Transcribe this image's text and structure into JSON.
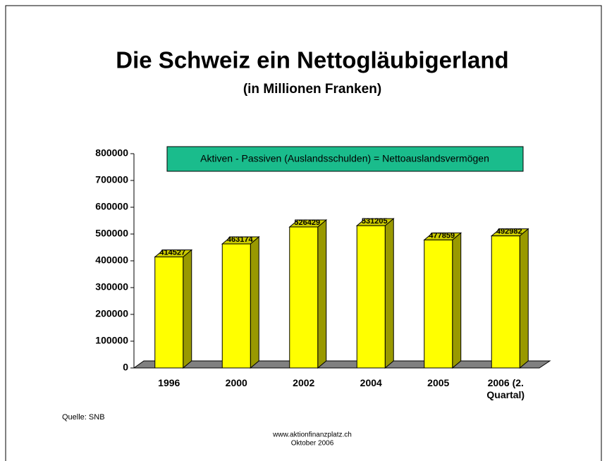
{
  "chart_data": {
    "type": "bar3d",
    "title": "Die Schweiz ein Nettogläubigerland",
    "subtitle": "(in Millionen Franken)",
    "annotation": "Aktiven - Passiven (Auslandsschulden) = Nettoauslandsvermögen",
    "categories": [
      "1996",
      "2000",
      "2002",
      "2004",
      "2005",
      "2006 (2. Quartal)"
    ],
    "values": [
      414527,
      463174,
      526429,
      531205,
      477859,
      492982
    ],
    "color": "#ffff00",
    "ylim": [
      0,
      800000
    ],
    "yticks": [
      0,
      100000,
      200000,
      300000,
      400000,
      500000,
      600000,
      700000,
      800000
    ],
    "source": "Quelle: SNB",
    "footer": [
      "www.aktionfinanzplatz.ch",
      "Oktober 2006"
    ]
  }
}
